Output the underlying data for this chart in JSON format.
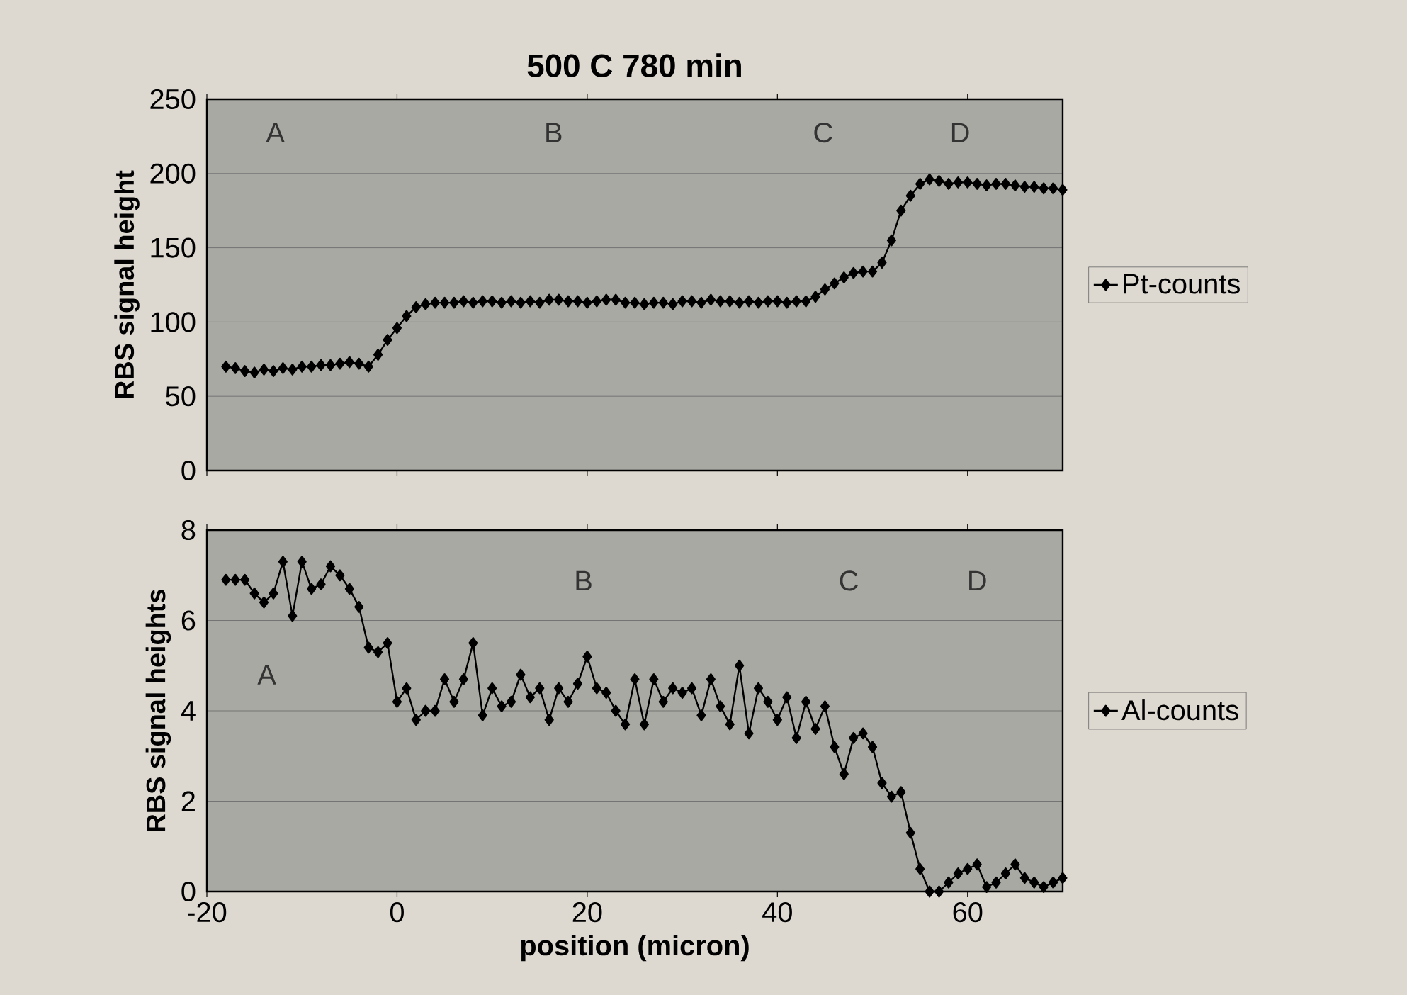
{
  "chart_data": [
    {
      "type": "line",
      "title": "500 C 780 min",
      "ylabel": "RBS signal height",
      "xlim": [
        -20,
        70
      ],
      "ylim": [
        0,
        250
      ],
      "xticks": [
        -20,
        0,
        20,
        40,
        60
      ],
      "yticks": [
        0,
        50,
        100,
        150,
        200,
        250
      ],
      "tick_labels": "y",
      "grid": "y",
      "legend": "right",
      "marker": "diamond",
      "line_style": "solid",
      "x": [
        -18,
        -17,
        -16,
        -15,
        -14,
        -13,
        -12,
        -11,
        -10,
        -9,
        -8,
        -7,
        -6,
        -5,
        -4,
        -3,
        -2,
        -1,
        0,
        1,
        2,
        3,
        4,
        5,
        6,
        7,
        8,
        9,
        10,
        11,
        12,
        13,
        14,
        15,
        16,
        17,
        18,
        19,
        20,
        21,
        22,
        23,
        24,
        25,
        26,
        27,
        28,
        29,
        30,
        31,
        32,
        33,
        34,
        35,
        36,
        37,
        38,
        39,
        40,
        41,
        42,
        43,
        44,
        45,
        46,
        47,
        48,
        49,
        50,
        51,
        52,
        53,
        54,
        55,
        56,
        57,
        58,
        59,
        60,
        61,
        62,
        63,
        64,
        65,
        66,
        67,
        68,
        69,
        70
      ],
      "series": [
        {
          "name": "Pt-counts",
          "color": "#000000",
          "values": [
            70,
            69,
            67,
            66,
            68,
            67,
            69,
            68,
            70,
            70,
            71,
            71,
            72,
            73,
            72,
            70,
            78,
            88,
            96,
            104,
            110,
            112,
            113,
            113,
            113,
            114,
            113,
            114,
            114,
            113,
            114,
            113,
            114,
            113,
            115,
            115,
            114,
            114,
            113,
            114,
            115,
            115,
            113,
            113,
            112,
            113,
            113,
            112,
            114,
            114,
            113,
            115,
            114,
            114,
            113,
            114,
            113,
            114,
            114,
            113,
            114,
            114,
            117,
            122,
            126,
            130,
            133,
            134,
            134,
            140,
            155,
            175,
            185,
            193,
            196,
            195,
            193,
            194,
            194,
            193,
            192,
            193,
            193,
            192,
            191,
            191,
            190,
            190,
            189
          ]
        }
      ],
      "annotations": [
        "A",
        "B",
        "C",
        "D"
      ]
    },
    {
      "type": "line",
      "xlabel": "position (micron)",
      "ylabel": "RBS signal heights",
      "xlim": [
        -20,
        70
      ],
      "ylim": [
        0,
        8
      ],
      "xticks": [
        -20,
        0,
        20,
        40,
        60
      ],
      "yticks": [
        0,
        2,
        4,
        6,
        8
      ],
      "grid": "y",
      "legend": "right",
      "marker": "diamond",
      "line_style": "solid",
      "x": [
        -18,
        -17,
        -16,
        -15,
        -14,
        -13,
        -12,
        -11,
        -10,
        -9,
        -8,
        -7,
        -6,
        -5,
        -4,
        -3,
        -2,
        -1,
        0,
        1,
        2,
        3,
        4,
        5,
        6,
        7,
        8,
        9,
        10,
        11,
        12,
        13,
        14,
        15,
        16,
        17,
        18,
        19,
        20,
        21,
        22,
        23,
        24,
        25,
        26,
        27,
        28,
        29,
        30,
        31,
        32,
        33,
        34,
        35,
        36,
        37,
        38,
        39,
        40,
        41,
        42,
        43,
        44,
        45,
        46,
        47,
        48,
        49,
        50,
        51,
        52,
        53,
        54,
        55,
        56,
        57,
        58,
        59,
        60,
        61,
        62,
        63,
        64,
        65,
        66,
        67,
        68,
        69,
        70
      ],
      "series": [
        {
          "name": "Al-counts",
          "color": "#000000",
          "values": [
            6.9,
            6.9,
            6.9,
            6.6,
            6.4,
            6.6,
            7.3,
            6.1,
            7.3,
            6.7,
            6.8,
            7.2,
            7.0,
            6.7,
            6.3,
            5.4,
            5.3,
            5.5,
            4.2,
            4.5,
            3.8,
            4.0,
            4.0,
            4.7,
            4.2,
            4.7,
            5.5,
            3.9,
            4.5,
            4.1,
            4.2,
            4.8,
            4.3,
            4.5,
            3.8,
            4.5,
            4.2,
            4.6,
            5.2,
            4.5,
            4.4,
            4.0,
            3.7,
            4.7,
            3.7,
            4.7,
            4.2,
            4.5,
            4.4,
            4.5,
            3.9,
            4.7,
            4.1,
            3.7,
            5.0,
            3.5,
            4.5,
            4.2,
            3.8,
            4.3,
            3.4,
            4.2,
            3.6,
            4.1,
            3.2,
            2.6,
            3.4,
            3.5,
            3.2,
            2.4,
            2.1,
            2.2,
            1.3,
            0.5,
            0.0,
            0.0,
            0.2,
            0.4,
            0.5,
            0.6,
            0.1,
            0.2,
            0.4,
            0.6,
            0.3,
            0.2,
            0.1,
            0.2,
            0.3
          ]
        }
      ],
      "annotations": [
        "A",
        "B",
        "C",
        "D"
      ]
    }
  ]
}
